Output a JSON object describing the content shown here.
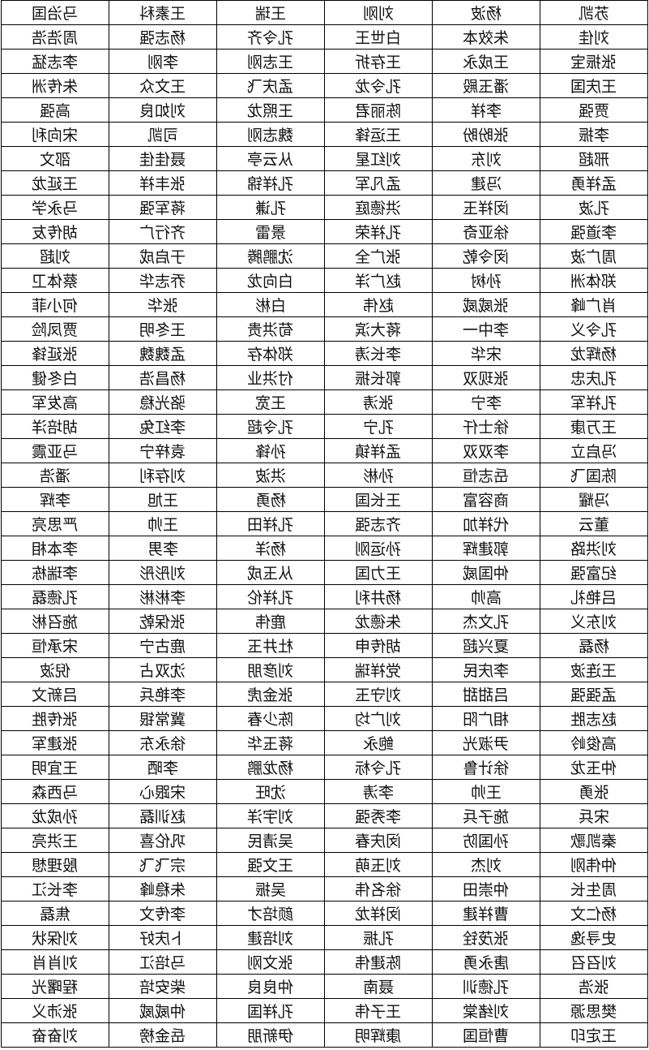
{
  "table": {
    "rows": [
      [
        "马治国",
        "王素科",
        "王瑞",
        "刘刚",
        "杨波",
        "苏凯"
      ],
      [
        "周浩浩",
        "杨志强",
        "孔令齐",
        "白世王",
        "朱效本",
        "刘佳"
      ],
      [
        "李志猛",
        "李刚",
        "王志刚",
        "王存折",
        "王成永",
        "张振宝"
      ],
      [
        "朱传洲",
        "王文众",
        "孟庆飞",
        "孔令龙",
        "潘玉殿",
        "王庆国"
      ],
      [
        "高强",
        "刘如良",
        "王照龙",
        "陈丽君",
        "李祥",
        "贾强"
      ],
      [
        "宋向利",
        "司凯",
        "魏志刚",
        "王运锋",
        "张盼盼",
        "李振"
      ],
      [
        "邵文",
        "聂佳佳",
        "从云亭",
        "刘红星",
        "刘东",
        "邢超"
      ],
      [
        "王延龙",
        "张丰祥",
        "孔祥锦",
        "孟凡军",
        "冯建",
        "孟祥勇"
      ],
      [
        "马永学",
        "蒋军强",
        "孔谦",
        "洪德庭",
        "闵祥玉",
        "孔波"
      ],
      [
        "胡传友",
        "齐行广",
        "景雷",
        "孔祥荣",
        "徐亚奇",
        "李道强"
      ],
      [
        "刘超",
        "于启成",
        "沈鹏腾",
        "张广全",
        "闵令乾",
        "周广波"
      ],
      [
        "蔡体卫",
        "乔志华",
        "白向龙",
        "赵广洋",
        "孙树",
        "郑体洲"
      ],
      [
        "何小菲",
        "张华",
        "白彬",
        "赵伟",
        "张威威",
        "肖广峰"
      ],
      [
        "贾凤险",
        "王冬明",
        "荀洪贵",
        "蒋大滨",
        "李中一",
        "孔令义"
      ],
      [
        "张延锋",
        "孟魏魏",
        "郑体存",
        "李长涛",
        "宋华",
        "杨辉龙"
      ],
      [
        "白冬健",
        "杨昌浩",
        "付洪业",
        "郭长振",
        "张现双",
        "孔庆忠"
      ],
      [
        "高发军",
        "骆光稳",
        "王宽",
        "张涛",
        "李宁",
        "孔祥军"
      ],
      [
        "胡培洋",
        "李红兔",
        "孔令超",
        "孔宁",
        "徐士仟",
        "王万康"
      ],
      [
        "马亚震",
        "袁梓宁",
        "孙锋",
        "孟祥镇",
        "李双双",
        "冯启立"
      ],
      [
        "潘浩",
        "刘存利",
        "洪波",
        "孙彬",
        "岳志恒",
        "陈国飞"
      ],
      [
        "李辉",
        "王旭",
        "杨勇",
        "王长国",
        "商容富",
        "冯耀"
      ],
      [
        "严思亮",
        "王帅",
        "孔祥田",
        "齐志强",
        "代祥加",
        "董云"
      ],
      [
        "李本相",
        "李男",
        "杨洋",
        "孙运刚",
        "郭建辉",
        "刘洪路"
      ],
      [
        "李瑞栋",
        "刘彤彤",
        "从玉成",
        "王力国",
        "仲国威",
        "纪富强"
      ],
      [
        "孔德磊",
        "李彬彬",
        "孔祥伦",
        "杨井利",
        "高帅",
        "吕艳礼"
      ],
      [
        "施召彬",
        "张保乾",
        "鹿伟",
        "朱德龙",
        "孔文杰",
        "刘东义"
      ],
      [
        "宋承恒",
        "鹿古宁",
        "杜井玉",
        "胡传申",
        "夏兴超",
        "杨磊"
      ],
      [
        "倪波",
        "沈双占",
        "刘彦朋",
        "党祥瑞",
        "李庆民",
        "王连波"
      ],
      [
        "吕新文",
        "李艳兵",
        "张金虎",
        "刘守玉",
        "吕甜甜",
        "孟强强"
      ],
      [
        "张传胜",
        "冀常银",
        "陈少春",
        "刘广均",
        "相广阳",
        "赵志胜"
      ],
      [
        "张建军",
        "徐永东",
        "蒋玉华",
        "鲍永",
        "尹淑光",
        "高俊岭"
      ],
      [
        "王宜明",
        "李晒",
        "杨龙鹏",
        "孔令标",
        "徐计鲁",
        "仲玉龙"
      ],
      [
        "马西森",
        "宋跟心",
        "沈旺",
        "李涛",
        "王帅",
        "张勇"
      ],
      [
        "孙成龙",
        "赵训磊",
        "刘宇洋",
        "李秀强",
        "施子兵",
        "宋兵"
      ],
      [
        "王洪亮",
        "巩伦喜",
        "吴清民",
        "闵庆春",
        "孙国防",
        "秦凯歌"
      ],
      [
        "殷理想",
        "宗飞飞",
        "王文强",
        "刘玉萌",
        "刘杰",
        "仲伟刚"
      ],
      [
        "李长江",
        "朱稳峰",
        "吴振",
        "徐名伟",
        "仲崇田",
        "周生长"
      ],
      [
        "焦磊",
        "李传文",
        "颜培才",
        "闵祥龙",
        "曹祥建",
        "杨仁文"
      ],
      [
        "刘保状",
        "卜庆好",
        "刘培建",
        "孔振",
        "张茂铨",
        "史寻逸"
      ],
      [
        "刘肖肖",
        "马培江",
        "张文刚",
        "陈建伟",
        "唐永勇",
        "刘召召"
      ],
      [
        "程曙光",
        "柴安培",
        "仲良良",
        "聂南",
        "孔德训",
        "张浩"
      ],
      [
        "张沛义",
        "仲威威",
        "孔祥国",
        "王子伟",
        "刘绪棠",
        "樊思源"
      ],
      [
        "刘奋奋",
        "岳金榜",
        "伊新朋",
        "康辉明",
        "曹恒国",
        "王定印"
      ]
    ]
  }
}
